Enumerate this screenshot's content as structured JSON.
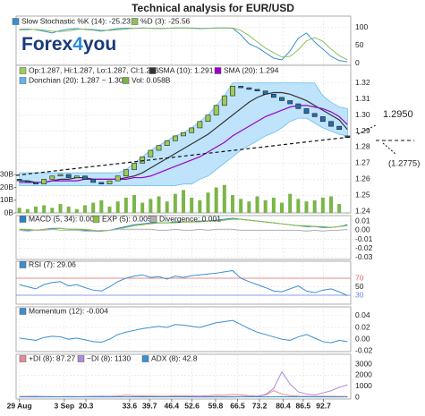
{
  "chart_data": {
    "title": "Technical analysis for EUR/USD",
    "logo": [
      "Forex",
      "4",
      "you"
    ],
    "annotations": [
      "1.2950",
      "(1.2775)"
    ],
    "x": [
      0,
      2.5,
      5,
      7.5,
      10,
      12.5,
      15,
      17.5,
      20,
      22.5,
      25,
      27.5,
      30,
      32.5,
      35,
      37.5,
      40,
      42.5,
      45,
      47.5,
      50,
      52.5,
      55,
      57.5,
      60,
      62.5,
      65,
      67.5,
      70,
      72.5,
      75,
      77.5,
      80,
      82.5,
      85,
      87.5,
      90,
      92.5,
      95,
      97.5,
      100
    ],
    "xlim": [
      -1,
      101
    ],
    "xticks": [
      {
        "value": 0,
        "label": "29 Aug"
      },
      {
        "value": 13.7,
        "label": "3 Sep"
      },
      20.3,
      33.6,
      39.7,
      46.4,
      52.6,
      59.8,
      66.5,
      73.2,
      80.4,
      86.5,
      92.7
    ],
    "grid": true,
    "panels": [
      {
        "type": "line",
        "ylim": [
          -5,
          132
        ],
        "yticks": [
          0,
          50,
          100
        ],
        "series": [
          {
            "name": "Slow Stochastic %K (14): -25.23",
            "color": "#3a8fd0",
            "values": [
              95,
              96,
              94,
              90,
              85,
              92,
              96,
              97,
              95,
              93,
              90,
              94,
              97,
              98,
              98,
              99,
              98,
              97,
              98,
              99,
              99,
              98,
              97,
              98,
              99,
              99,
              98,
              80,
              55,
              45,
              30,
              15,
              10,
              35,
              70,
              85,
              60,
              40,
              20,
              8,
              5
            ]
          },
          {
            "name": "%D (3): -25.56",
            "color": "#8cc060",
            "values": [
              93,
              94,
              95,
              93,
              90,
              89,
              91,
              95,
              96,
              95,
              93,
              92,
              94,
              96,
              98,
              98,
              98,
              98,
              98,
              98,
              99,
              99,
              98,
              98,
              98,
              99,
              99,
              92,
              78,
              60,
              43,
              30,
              18,
              20,
              38,
              63,
              72,
              62,
              40,
              22,
              10
            ]
          }
        ]
      },
      {
        "type": "candlestick",
        "name": "Op:1.287, Hi:1.287, Lo:1.287, Cl:1.286",
        "up_color": "#9ccc5a",
        "down_color": "#1f6fb0",
        "open": [
          1.26,
          1.259,
          1.258,
          1.257,
          1.26,
          1.262,
          1.263,
          1.261,
          1.262,
          1.26,
          1.258,
          1.257,
          1.259,
          1.262,
          1.266,
          1.27,
          1.274,
          1.278,
          1.281,
          1.284,
          1.287,
          1.289,
          1.292,
          1.296,
          1.3,
          1.306,
          1.312,
          1.318,
          1.317,
          1.316,
          1.315,
          1.313,
          1.311,
          1.309,
          1.307,
          1.304,
          1.301,
          1.299,
          1.296,
          1.293,
          1.287
        ],
        "close": [
          1.259,
          1.258,
          1.257,
          1.26,
          1.262,
          1.263,
          1.261,
          1.262,
          1.26,
          1.258,
          1.257,
          1.259,
          1.262,
          1.266,
          1.27,
          1.274,
          1.278,
          1.281,
          1.284,
          1.287,
          1.289,
          1.292,
          1.296,
          1.3,
          1.306,
          1.312,
          1.318,
          1.317,
          1.316,
          1.315,
          1.313,
          1.311,
          1.309,
          1.307,
          1.304,
          1.301,
          1.299,
          1.296,
          1.293,
          1.291,
          1.286
        ],
        "ylim": [
          1.239,
          1.331
        ],
        "yticks": [
          1.24,
          1.25,
          1.26,
          1.27,
          1.28,
          1.29,
          {
            "value": 1.3,
            "label": "1.30"
          },
          1.31,
          1.32
        ],
        "y2lim": [
          0,
          116
        ],
        "y2ticks": [
          {
            "value": 0,
            "label": "0B"
          },
          {
            "value": 10,
            "label": "10B"
          },
          {
            "value": 20,
            "label": "20B"
          },
          {
            "value": 30,
            "label": "30B"
          }
        ],
        "series": [
          {
            "name": "SMA (10): 1.291",
            "color": "#333333",
            "values": [
              1.259,
              1.259,
              1.258,
              1.258,
              1.259,
              1.26,
              1.26,
              1.261,
              1.261,
              1.26,
              1.26,
              1.26,
              1.26,
              1.261,
              1.262,
              1.264,
              1.267,
              1.27,
              1.273,
              1.276,
              1.279,
              1.282,
              1.285,
              1.288,
              1.292,
              1.296,
              1.3,
              1.304,
              1.308,
              1.311,
              1.313,
              1.314,
              1.314,
              1.313,
              1.311,
              1.309,
              1.306,
              1.303,
              1.3,
              1.297,
              1.291
            ]
          },
          {
            "name": "SMA (20): 1.294",
            "color": "#9900cc",
            "values": [
              1.258,
              1.258,
              1.258,
              1.258,
              1.259,
              1.259,
              1.259,
              1.259,
              1.26,
              1.26,
              1.26,
              1.26,
              1.26,
              1.26,
              1.261,
              1.261,
              1.262,
              1.264,
              1.266,
              1.268,
              1.27,
              1.272,
              1.274,
              1.277,
              1.28,
              1.283,
              1.287,
              1.29,
              1.293,
              1.296,
              1.299,
              1.301,
              1.303,
              1.305,
              1.306,
              1.306,
              1.305,
              1.304,
              1.302,
              1.299,
              1.294
            ]
          }
        ],
        "band": {
          "name": "Donchian (20): 1.287 ~ 1.304",
          "color": "#5bb8f0",
          "fill": "#bfe3fa",
          "upper": [
            1.264,
            1.264,
            1.264,
            1.264,
            1.264,
            1.264,
            1.264,
            1.264,
            1.264,
            1.264,
            1.264,
            1.264,
            1.264,
            1.266,
            1.27,
            1.274,
            1.278,
            1.281,
            1.284,
            1.287,
            1.289,
            1.292,
            1.296,
            1.3,
            1.306,
            1.312,
            1.32,
            1.32,
            1.32,
            1.32,
            1.32,
            1.32,
            1.32,
            1.32,
            1.32,
            1.32,
            1.32,
            1.312,
            1.308,
            1.305,
            1.304
          ],
          "lower": [
            1.256,
            1.256,
            1.256,
            1.256,
            1.256,
            1.256,
            1.256,
            1.256,
            1.256,
            1.256,
            1.256,
            1.256,
            1.256,
            1.256,
            1.256,
            1.256,
            1.256,
            1.256,
            1.256,
            1.256,
            1.257,
            1.257,
            1.26,
            1.262,
            1.266,
            1.27,
            1.274,
            1.278,
            1.281,
            1.284,
            1.287,
            1.289,
            1.292,
            1.296,
            1.298,
            1.298,
            1.295,
            1.292,
            1.29,
            1.288,
            1.287
          ]
        },
        "volume": {
          "name": "Vol: 0.058B",
          "color": "#7ab648",
          "axis": "y2",
          "values": [
            4,
            3,
            5,
            6,
            4,
            7,
            5,
            3,
            6,
            8,
            10,
            5,
            9,
            12,
            14,
            8,
            11,
            13,
            9,
            15,
            18,
            12,
            10,
            16,
            20,
            22,
            14,
            11,
            9,
            13,
            10,
            12,
            8,
            15,
            11,
            9,
            10,
            12,
            13,
            7,
            0.058
          ]
        }
      },
      {
        "type": "line",
        "ylim": [
          -0.032,
          0.016
        ],
        "yticks": [
          -0.03,
          -0.02,
          -0.01,
          {
            "value": 0,
            "label": "0.00"
          },
          0.01
        ],
        "series": [
          {
            "name": "MACD (5, 34): 0.006",
            "color": "#2a80c8",
            "values": [
              0.001,
              0.0,
              0.0,
              0.001,
              0.002,
              0.002,
              0.001,
              0.001,
              0.0,
              -0.001,
              -0.001,
              0.0,
              0.002,
              0.004,
              0.006,
              0.007,
              0.008,
              0.008,
              0.008,
              0.009,
              0.009,
              0.009,
              0.01,
              0.01,
              0.011,
              0.012,
              0.013,
              0.012,
              0.011,
              0.01,
              0.009,
              0.008,
              0.007,
              0.006,
              0.005,
              0.004,
              0.004,
              0.003,
              0.003,
              0.004,
              0.006
            ]
          },
          {
            "name": "EXP (5): 0.005",
            "color": "#88c040",
            "values": [
              0.001,
              0.001,
              0.0,
              0.001,
              0.001,
              0.002,
              0.001,
              0.001,
              0.001,
              0.0,
              -0.001,
              0.0,
              0.001,
              0.003,
              0.005,
              0.006,
              0.007,
              0.008,
              0.008,
              0.008,
              0.009,
              0.009,
              0.009,
              0.01,
              0.01,
              0.011,
              0.012,
              0.012,
              0.011,
              0.01,
              0.009,
              0.008,
              0.007,
              0.006,
              0.005,
              0.005,
              0.004,
              0.004,
              0.003,
              0.004,
              0.005
            ]
          },
          {
            "name": "Divergence: 0.001",
            "color": "#b0b0b0",
            "values": [
              0,
              -0.001,
              0,
              0,
              0.001,
              0,
              0,
              0,
              -0.001,
              -0.001,
              0,
              0,
              0.001,
              0.001,
              0.001,
              0.001,
              0.001,
              0,
              0,
              0.001,
              0,
              0,
              0.001,
              0,
              0.001,
              0.001,
              0.001,
              0,
              0,
              0,
              0,
              0,
              0,
              0,
              0,
              -0.001,
              0,
              -0.001,
              0,
              0,
              0.001
            ]
          }
        ]
      },
      {
        "type": "line",
        "ylim": [
          9,
          110
        ],
        "yticks": [
          30,
          50,
          70
        ],
        "levels": [
          {
            "value": 70,
            "color": "#e06666"
          },
          {
            "value": 30,
            "color": "#6a7fe0"
          }
        ],
        "series": [
          {
            "name": "RSI (7): 29.06",
            "color": "#3a8fd0",
            "values": [
              55,
              50,
              45,
              55,
              60,
              62,
              52,
              55,
              48,
              42,
              40,
              50,
              62,
              70,
              75,
              78,
              72,
              74,
              68,
              75,
              72,
              76,
              78,
              80,
              82,
              85,
              88,
              70,
              62,
              55,
              48,
              40,
              38,
              45,
              52,
              40,
              36,
              42,
              45,
              38,
              29
            ]
          }
        ]
      },
      {
        "type": "line",
        "ylim": [
          -0.021,
          0.055
        ],
        "yticks": [
          -0.02,
          {
            "value": 0,
            "label": "0.00"
          },
          0.02,
          0.04
        ],
        "series": [
          {
            "name": "Momentum (12): -0.004",
            "color": "#3a8fd0",
            "values": [
              0.002,
              0.0,
              -0.002,
              0.003,
              0.005,
              0.004,
              0.0,
              0.002,
              -0.001,
              -0.004,
              -0.005,
              0.0,
              0.008,
              0.012,
              0.015,
              0.018,
              0.02,
              0.022,
              0.02,
              0.025,
              0.024,
              0.022,
              0.02,
              0.024,
              0.028,
              0.03,
              0.032,
              0.025,
              0.018,
              0.012,
              0.008,
              0.004,
              0.0,
              -0.002,
              0.004,
              0.008,
              0.002,
              -0.004,
              -0.006,
              -0.002,
              -0.004
            ]
          }
        ]
      },
      {
        "type": "line",
        "ylim": [
          -150,
          3890
        ],
        "yticks": [
          0,
          1000,
          2000,
          3000
        ],
        "series": [
          {
            "name": "+DI (8): 87.27",
            "color": "#e88a9a",
            "values": [
              80,
              90,
              100,
              70,
              60,
              60,
              80,
              60,
              70,
              90,
              100,
              90,
              120,
              200,
              150,
              130,
              120,
              110,
              100,
              150,
              130,
              120,
              110,
              140,
              200,
              180,
              260,
              220,
              150,
              100,
              200,
              600,
              300,
              150,
              100,
              90,
              80,
              100,
              90,
              85,
              87
            ]
          },
          {
            "name": "−DI (8): 1130",
            "color": "#b08ad8",
            "values": [
              60,
              50,
              40,
              70,
              60,
              50,
              70,
              50,
              60,
              80,
              90,
              70,
              50,
              40,
              40,
              30,
              40,
              40,
              50,
              40,
              40,
              30,
              40,
              30,
              30,
              30,
              30,
              60,
              80,
              100,
              250,
              800,
              2300,
              1200,
              500,
              300,
              200,
              400,
              600,
              900,
              1130
            ]
          },
          {
            "name": "ADX (8): 42.8",
            "color": "#3a8fd0",
            "values": [
              40,
              40,
              42,
              40,
              38,
              40,
              41,
              40,
              40,
              42,
              44,
              45,
              46,
              48,
              50,
              52,
              55,
              56,
              55,
              56,
              57,
              58,
              58,
              60,
              62,
              63,
              64,
              60,
              55,
              50,
              45,
              48,
              60,
              55,
              50,
              48,
              46,
              45,
              44,
              43,
              43
            ]
          }
        ]
      }
    ]
  }
}
